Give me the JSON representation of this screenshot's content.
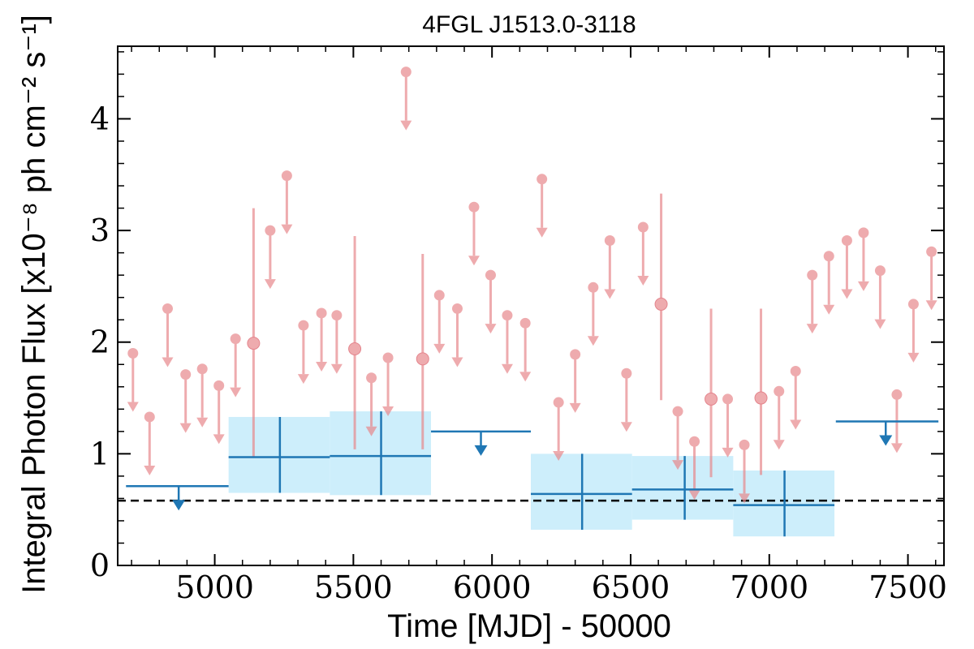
{
  "chart_data": {
    "type": "scatter",
    "title": "4FGL J1513.0-3118",
    "xlabel": "Time [MJD] - 50000",
    "ylabel": "Integral Photon Flux [x10⁻⁸ ph cm⁻² s⁻¹]",
    "xlim": [
      4650,
      7630
    ],
    "ylim": [
      0,
      4.65
    ],
    "x_ticks": [
      5000,
      5500,
      6000,
      6500,
      7000,
      7500
    ],
    "y_ticks": [
      0,
      1,
      2,
      3,
      4
    ],
    "reference_line": {
      "y": 0.58,
      "style": "dashed"
    },
    "colors": {
      "fine": "#e8888c",
      "coarse": "#1f77b4",
      "band": "#cdeefb"
    },
    "series": [
      {
        "name": "",
        "resolution": "fine",
        "upper_limits": [
          {
            "x": 4705,
            "y": 1.9
          },
          {
            "x": 4765,
            "y": 1.33
          },
          {
            "x": 4830,
            "y": 2.3
          },
          {
            "x": 4895,
            "y": 1.71
          },
          {
            "x": 4955,
            "y": 1.76
          },
          {
            "x": 5015,
            "y": 1.61
          },
          {
            "x": 5075,
            "y": 2.03
          },
          {
            "x": 5200,
            "y": 3.0
          },
          {
            "x": 5260,
            "y": 3.49
          },
          {
            "x": 5320,
            "y": 2.15
          },
          {
            "x": 5385,
            "y": 2.26
          },
          {
            "x": 5440,
            "y": 2.24
          },
          {
            "x": 5565,
            "y": 1.68
          },
          {
            "x": 5625,
            "y": 1.86
          },
          {
            "x": 5690,
            "y": 4.42
          },
          {
            "x": 5810,
            "y": 2.42
          },
          {
            "x": 5875,
            "y": 2.3
          },
          {
            "x": 5935,
            "y": 3.21
          },
          {
            "x": 5995,
            "y": 2.6
          },
          {
            "x": 6055,
            "y": 2.24
          },
          {
            "x": 6120,
            "y": 2.17
          },
          {
            "x": 6180,
            "y": 3.46
          },
          {
            "x": 6240,
            "y": 1.46
          },
          {
            "x": 6300,
            "y": 1.89
          },
          {
            "x": 6365,
            "y": 2.49
          },
          {
            "x": 6425,
            "y": 2.91
          },
          {
            "x": 6485,
            "y": 1.72
          },
          {
            "x": 6545,
            "y": 3.03
          },
          {
            "x": 6670,
            "y": 1.38
          },
          {
            "x": 6730,
            "y": 1.11
          },
          {
            "x": 6850,
            "y": 1.49
          },
          {
            "x": 6910,
            "y": 1.08
          },
          {
            "x": 7035,
            "y": 1.56
          },
          {
            "x": 7095,
            "y": 1.74
          },
          {
            "x": 7155,
            "y": 2.6
          },
          {
            "x": 7215,
            "y": 2.77
          },
          {
            "x": 7280,
            "y": 2.91
          },
          {
            "x": 7340,
            "y": 2.98
          },
          {
            "x": 7400,
            "y": 2.64
          },
          {
            "x": 7460,
            "y": 1.53
          },
          {
            "x": 7520,
            "y": 2.34
          },
          {
            "x": 7585,
            "y": 2.81
          }
        ],
        "detections": [
          {
            "x": 5140,
            "y": 1.99,
            "ylo": 0.97,
            "yhi": 3.2
          },
          {
            "x": 5505,
            "y": 1.94,
            "ylo": 1.04,
            "yhi": 2.95
          },
          {
            "x": 5750,
            "y": 1.85,
            "ylo": 1.04,
            "yhi": 2.79
          },
          {
            "x": 6610,
            "y": 2.34,
            "ylo": 1.48,
            "yhi": 3.33
          },
          {
            "x": 6790,
            "y": 1.49,
            "ylo": 0.79,
            "yhi": 2.3
          },
          {
            "x": 6970,
            "y": 1.5,
            "ylo": 0.81,
            "yhi": 2.3
          }
        ]
      },
      {
        "name": "",
        "resolution": "coarse",
        "upper_limits": [
          {
            "x0": 4680,
            "x1": 5050,
            "y": 0.71,
            "marker_x": 4870
          },
          {
            "x0": 5780,
            "x1": 6140,
            "y": 1.2,
            "marker_x": 5960
          },
          {
            "x0": 7240,
            "x1": 7610,
            "y": 1.29,
            "marker_x": 7420
          }
        ],
        "detections": [
          {
            "x0": 5050,
            "x1": 5415,
            "xc": 5235,
            "y": 0.97,
            "ylo": 0.65,
            "yhi": 1.33
          },
          {
            "x0": 5415,
            "x1": 5780,
            "xc": 5600,
            "y": 0.98,
            "ylo": 0.63,
            "yhi": 1.38
          },
          {
            "x0": 6140,
            "x1": 6505,
            "xc": 6325,
            "y": 0.64,
            "ylo": 0.32,
            "yhi": 1.0
          },
          {
            "x0": 6505,
            "x1": 6870,
            "xc": 6695,
            "y": 0.68,
            "ylo": 0.41,
            "yhi": 0.98
          },
          {
            "x0": 6870,
            "x1": 7235,
            "xc": 7055,
            "y": 0.54,
            "ylo": 0.26,
            "yhi": 0.85
          }
        ]
      }
    ]
  }
}
